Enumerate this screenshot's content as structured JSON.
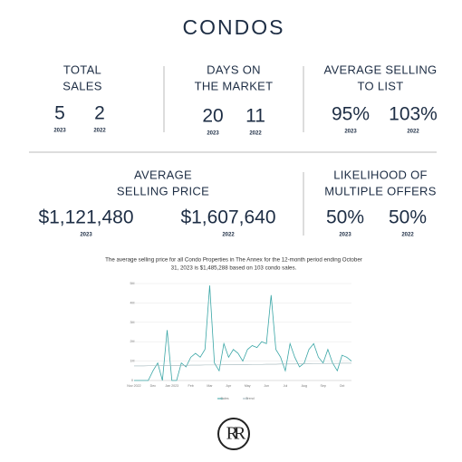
{
  "title": "CONDOS",
  "stats": [
    {
      "label": [
        "TOTAL",
        "SALES"
      ],
      "items": [
        {
          "value": "5",
          "year": "2023"
        },
        {
          "value": "2",
          "year": "2022"
        }
      ]
    },
    {
      "label": [
        "DAYS ON",
        "THE MARKET"
      ],
      "items": [
        {
          "value": "20",
          "year": "2023"
        },
        {
          "value": "11",
          "year": "2022"
        }
      ]
    },
    {
      "label": [
        "AVERAGE SELLING",
        "TO LIST"
      ],
      "items": [
        {
          "value": "95%",
          "year": "2023"
        },
        {
          "value": "103%",
          "year": "2022"
        }
      ]
    },
    {
      "label": [
        "AVERAGE",
        "SELLING PRICE"
      ],
      "items": [
        {
          "value": "$1,121,480",
          "year": "2023"
        },
        {
          "value": "$1,607,640",
          "year": "2022"
        }
      ]
    },
    {
      "label": [
        "LIKELIHOOD OF",
        "MULTIPLE OFFERS"
      ],
      "items": [
        {
          "value": "50%",
          "year": "2023"
        },
        {
          "value": "50%",
          "year": "2022"
        }
      ]
    }
  ],
  "caption": [
    "The average selling price for all Condo Properties in The Annex for the 12-month period ending October",
    "31, 2023 is $1,485,288 based on 103 condo sales."
  ],
  "chart_data": {
    "type": "line",
    "categories": [
      "Nov 2022",
      null,
      null,
      null,
      "Dec",
      null,
      null,
      null,
      "Jan 2023",
      null,
      null,
      null,
      "Feb",
      null,
      null,
      null,
      "Mar",
      null,
      null,
      null,
      "Apr",
      null,
      null,
      null,
      "May",
      null,
      null,
      null,
      "Jun",
      null,
      null,
      null,
      "Jul",
      null,
      null,
      null,
      "Aug",
      null,
      null,
      null,
      "Sep",
      null,
      null,
      null,
      "Oct",
      null,
      null
    ],
    "series": [
      {
        "name": "Sales",
        "color": "#3aa6a6",
        "values": [
          0,
          0,
          0,
          0,
          0.5,
          0.9,
          0,
          2.6,
          0,
          0,
          0.9,
          0.7,
          1.2,
          1.4,
          1.2,
          1.6,
          4.9,
          0.9,
          0.5,
          1.9,
          1.2,
          1.6,
          1.4,
          1.0,
          1.6,
          1.8,
          1.7,
          2.0,
          1.9,
          4.4,
          1.6,
          1.2,
          0.5,
          1.9,
          1.2,
          0.7,
          0.9,
          1.6,
          1.9,
          1.2,
          0.9,
          1.6,
          0.9,
          0.5,
          1.3,
          1.2,
          1.0
        ]
      },
      {
        "name": "Trend",
        "color": "#9fb3b8",
        "values": [
          0.75,
          0.75,
          0.75,
          0.76,
          0.76,
          0.76,
          0.77,
          0.77,
          0.77,
          0.78,
          0.78,
          0.78,
          0.79,
          0.79,
          0.79,
          0.8,
          0.8,
          0.8,
          0.8,
          0.81,
          0.81,
          0.81,
          0.82,
          0.82,
          0.82,
          0.83,
          0.83,
          0.83,
          0.84,
          0.84,
          0.84,
          0.85,
          0.85,
          0.85,
          0.85,
          0.86,
          0.86,
          0.86,
          0.87,
          0.87,
          0.87,
          0.88,
          0.88,
          0.88,
          0.89,
          0.89,
          0.89
        ]
      }
    ],
    "ylim": [
      0,
      5
    ],
    "yticks": [
      0,
      {
        "value": 1,
        "label": "1M"
      },
      {
        "value": 2,
        "label": "2M"
      },
      {
        "value": 3,
        "label": "3M"
      },
      {
        "value": 4,
        "label": "4M"
      },
      {
        "value": 5,
        "label": "5M"
      }
    ],
    "grid": true
  },
  "logo": "RR"
}
